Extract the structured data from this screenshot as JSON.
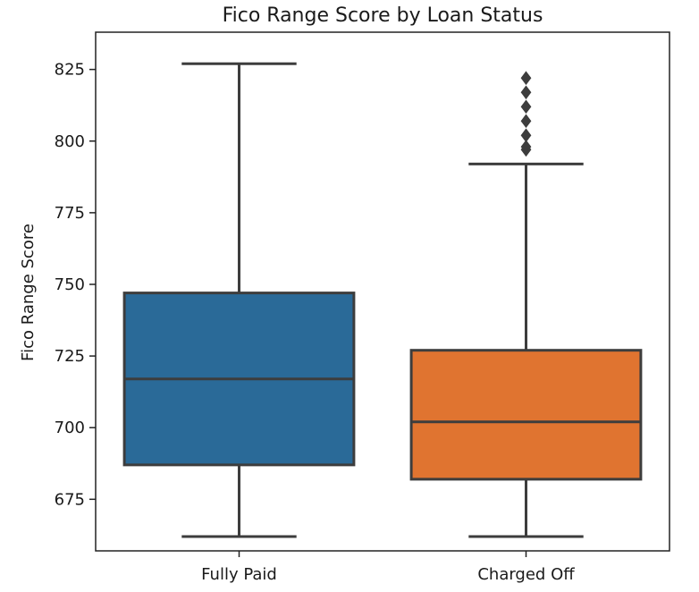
{
  "chart_data": {
    "type": "box",
    "title": "Fico Range Score by Loan Status",
    "xlabel": "",
    "ylabel": "Fico Range Score",
    "ylim": [
      657,
      838
    ],
    "yticks": [
      675,
      700,
      725,
      750,
      775,
      800,
      825
    ],
    "grid": false,
    "categories": [
      "Fully Paid",
      "Charged Off"
    ],
    "boxes": [
      {
        "category": "Fully Paid",
        "whisker_low": 662,
        "q1": 687,
        "median": 717,
        "q3": 747,
        "whisker_high": 827,
        "outliers": [],
        "color": "#2a6a98"
      },
      {
        "category": "Charged Off",
        "whisker_low": 662,
        "q1": 682,
        "median": 702,
        "q3": 727,
        "whisker_high": 792,
        "outliers": [
          797,
          798,
          802,
          807,
          812,
          817,
          822
        ],
        "color": "#e07430"
      }
    ]
  }
}
